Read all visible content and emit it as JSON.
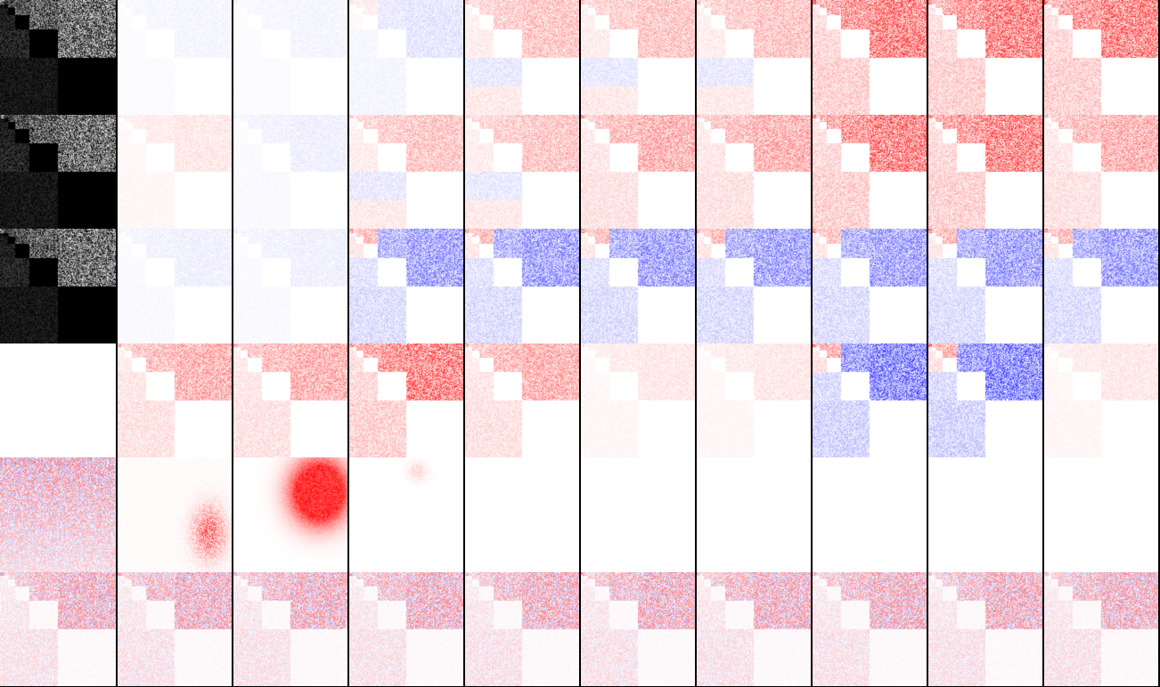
{
  "figure": {
    "columns": 10,
    "rows": 6,
    "colors": {
      "background": "#ffffff",
      "positive": "#ff0000",
      "negative": "#0000ff",
      "gray": "#000000",
      "divider": "#000000"
    },
    "panels": [
      [
        "gray",
        "fractal-faint",
        "fractal-faint",
        "fractal-blue-mix",
        "fractal-red-blue",
        "fractal-red-blue",
        "fractal-red-blue",
        "fractal-red-strong",
        "fractal-red-strong",
        "fractal-red-strong"
      ],
      [
        "gray",
        "fractal-red-faint",
        "fractal-blue-faint",
        "fractal-red-blue",
        "fractal-red-blue",
        "fractal-red",
        "fractal-red",
        "fractal-red-strong",
        "fractal-red-strong",
        "fractal-red"
      ],
      [
        "gray",
        "fractal-blue-faint",
        "fractal-blue-faint",
        "fractal-blue",
        "fractal-blue",
        "fractal-blue",
        "fractal-blue",
        "fractal-blue",
        "fractal-blue",
        "fractal-blue"
      ],
      [
        "blank",
        "fractal-red",
        "fractal-red",
        "fractal-red-strong",
        "fractal-red",
        "fractal-red-faint",
        "fractal-red-faint",
        "fractal-blue-strong",
        "fractal-blue-strong",
        "fractal-red-faint"
      ],
      [
        "noise-rb",
        "blob-small",
        "blob-large",
        "blob-tiny",
        "blank",
        "blank",
        "blank",
        "blank",
        "blank",
        "blank"
      ],
      [
        "fractal-rb-noise",
        "fractal-rb-noise",
        "fractal-rb-noise",
        "fractal-rb-noise",
        "fractal-rb-noise",
        "fractal-rb-noise",
        "fractal-rb-noise",
        "fractal-rb-noise",
        "fractal-rb-noise",
        "fractal-rb-noise"
      ]
    ]
  }
}
